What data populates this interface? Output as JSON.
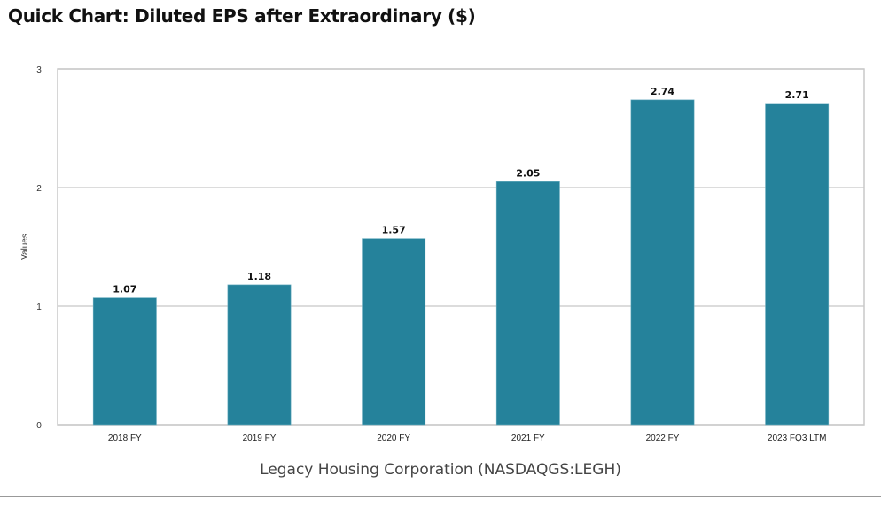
{
  "page": {
    "title": "Quick Chart: Diluted EPS after Extraordinary ($)"
  },
  "chart_data": {
    "type": "bar",
    "title": "Quick Chart: Diluted EPS after Extraordinary ($)",
    "subtitle": "Legacy Housing Corporation (NASDAQGS:LEGH)",
    "xlabel": "",
    "ylabel": "Values",
    "ylim": [
      0,
      3
    ],
    "yticks": [
      0,
      1,
      2,
      3
    ],
    "grid": true,
    "legend": "none",
    "bar_color": "#25829b",
    "categories": [
      "2018 FY",
      "2019 FY",
      "2020 FY",
      "2021 FY",
      "2022 FY",
      "2023 FQ3 LTM"
    ],
    "values": [
      1.07,
      1.18,
      1.57,
      2.05,
      2.74,
      2.71
    ],
    "data_labels": [
      "1.07",
      "1.18",
      "1.57",
      "2.05",
      "2.74",
      "2.71"
    ]
  }
}
